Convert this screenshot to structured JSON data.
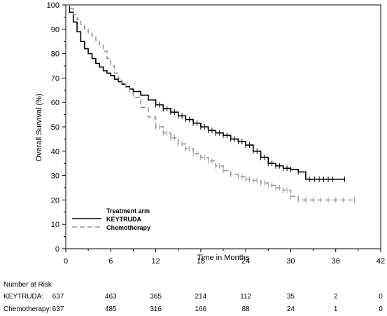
{
  "chart_data": {
    "type": "line",
    "title": "",
    "xlabel": "Time in Months",
    "ylabel": "Overall Survival (%)",
    "xlim": [
      0,
      42
    ],
    "ylim": [
      0,
      100
    ],
    "x_ticks": [
      0,
      6,
      12,
      18,
      24,
      30,
      36,
      42
    ],
    "y_ticks": [
      0,
      10,
      20,
      30,
      40,
      50,
      60,
      70,
      80,
      90,
      100
    ],
    "grid": false,
    "legend": {
      "title": "Treatment arm",
      "placement": "bottom-left",
      "entries": [
        "KEYTRUDA",
        "Chemotherapy"
      ]
    },
    "series": [
      {
        "name": "KEYTRUDA",
        "color": "#000000",
        "dash": "solid",
        "x": [
          0,
          0.5,
          1,
          1.5,
          2,
          2.5,
          3,
          3.5,
          4,
          4.5,
          5,
          5.5,
          6,
          6.5,
          7,
          7.5,
          8,
          8.5,
          9,
          10,
          11,
          12,
          13,
          14,
          15,
          16,
          17,
          18,
          19,
          20,
          21,
          22,
          23,
          24,
          25,
          26,
          27,
          28,
          29,
          30,
          31,
          32,
          33,
          34,
          35,
          36,
          37.2
        ],
        "y": [
          100,
          97,
          93,
          89,
          85,
          82,
          80,
          78,
          76,
          74.5,
          73,
          72,
          71,
          69.5,
          68.5,
          67.5,
          66.5,
          65.5,
          64.5,
          63,
          61,
          59,
          57.5,
          56,
          54.5,
          53,
          51.5,
          50,
          48.5,
          47.5,
          46.5,
          45,
          44,
          42.5,
          40,
          37.5,
          35,
          34,
          33,
          32.5,
          31.5,
          28.5,
          28.5,
          28.5,
          28.5,
          28.5,
          28.5
        ],
        "censor_x": [
          12,
          12.5,
          13,
          13.5,
          14,
          14.5,
          15,
          15.5,
          16,
          16.5,
          17,
          17.5,
          18,
          18.5,
          19,
          19.5,
          20,
          20.5,
          21,
          21.5,
          22,
          22.5,
          23,
          23.5,
          24,
          24.5,
          25,
          25.5,
          26,
          26.5,
          27,
          27.5,
          28,
          28.5,
          29,
          29.5,
          30,
          31,
          32.5,
          33.2,
          33.8,
          34.4,
          35,
          35.6,
          37.2
        ]
      },
      {
        "name": "Chemotherapy",
        "color": "#999999",
        "dash": "dashed",
        "x": [
          0,
          0.5,
          1,
          1.5,
          2,
          2.5,
          3,
          3.5,
          4,
          4.5,
          5,
          5.5,
          6,
          6.5,
          7,
          7.5,
          8,
          8.5,
          9,
          10,
          11,
          12,
          13,
          14,
          15,
          16,
          17,
          18,
          19,
          20,
          21,
          22,
          23,
          24,
          25,
          26,
          27,
          28,
          29,
          30,
          31,
          32,
          33,
          34,
          35,
          36,
          37,
          38.5
        ],
        "y": [
          100,
          98.5,
          96,
          94,
          92,
          90,
          88.5,
          87,
          85.5,
          83.5,
          81,
          78,
          75,
          72,
          70,
          68,
          66,
          64,
          62,
          58,
          54,
          50,
          47.5,
          45.5,
          43,
          41,
          39,
          37.5,
          36,
          34,
          32,
          30.5,
          29.5,
          28.5,
          28,
          27,
          26,
          25,
          24,
          21.5,
          20,
          20,
          20,
          20,
          20,
          20,
          20,
          20
        ],
        "censor_x": [
          12,
          12.5,
          13,
          13.5,
          14,
          14.5,
          15,
          15.5,
          16,
          16.5,
          17,
          17.5,
          18,
          18.5,
          19,
          19.5,
          20,
          20.5,
          21,
          22,
          23,
          23.5,
          24,
          24.5,
          25,
          25.5,
          26,
          26.5,
          27,
          27.5,
          28,
          28.5,
          29,
          29.5,
          30,
          31,
          32,
          33,
          34,
          35,
          36,
          37,
          38.5
        ]
      }
    ]
  },
  "risk_table": {
    "title": "Number at Risk",
    "times": [
      0,
      6,
      12,
      18,
      24,
      30,
      36,
      42
    ],
    "rows": [
      {
        "label": "KEYTRUDA:",
        "values": [
          "637",
          "463",
          "365",
          "214",
          "112",
          "35",
          "2",
          "0"
        ]
      },
      {
        "label": "Chemotherapy:",
        "values": [
          "637",
          "485",
          "316",
          "166",
          "88",
          "24",
          "1",
          "0"
        ]
      }
    ]
  }
}
